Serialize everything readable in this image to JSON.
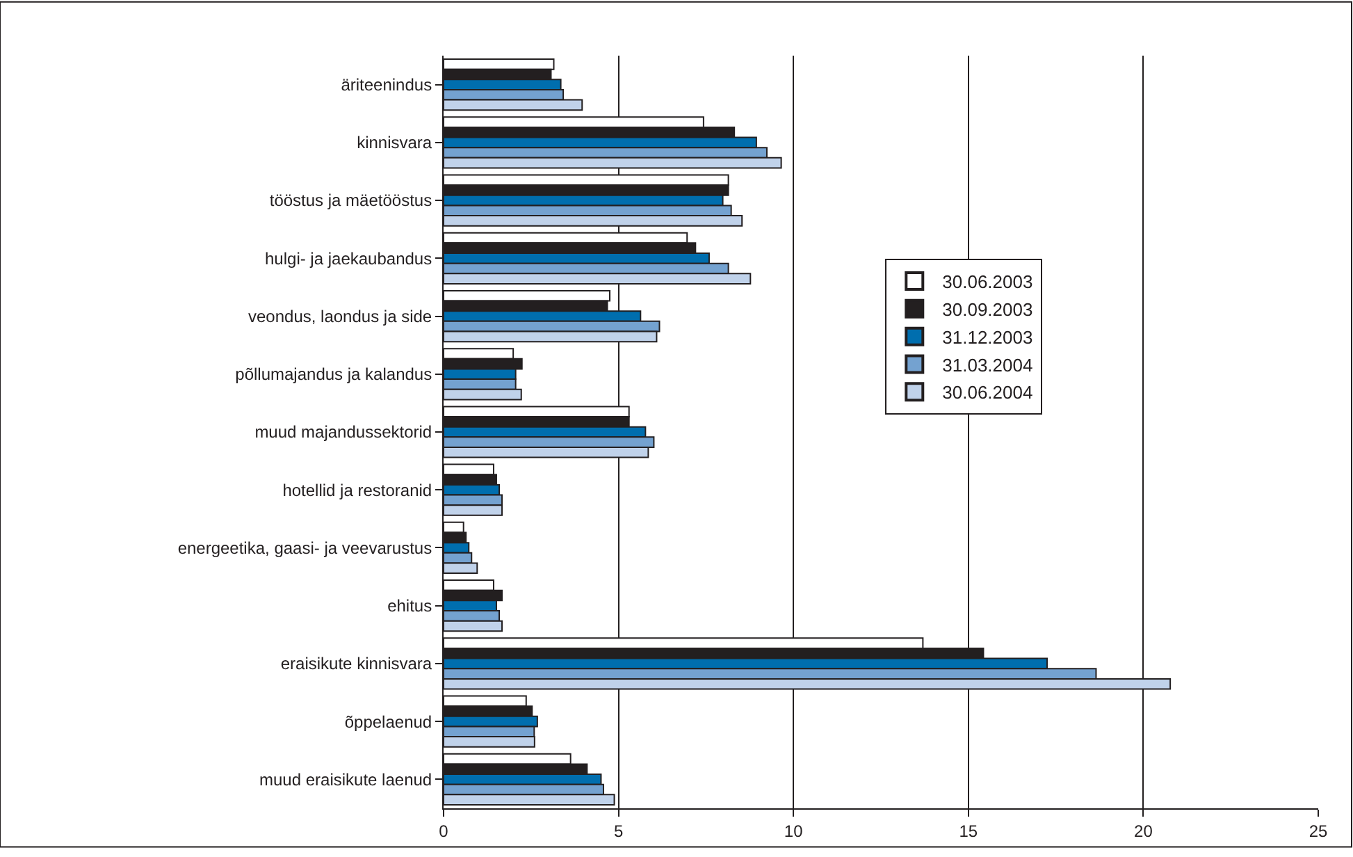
{
  "chart_data": {
    "type": "bar",
    "orientation": "horizontal",
    "categories": [
      "äriteenindus",
      "kinnisvara",
      "tööstus ja mäetööstus",
      "hulgi- ja jaekaubandus",
      "veondus, laondus ja side",
      "põllumajandus ja kalandus",
      "muud majandussektorid",
      "hotellid ja restoranid",
      "energeetika, gaasi- ja veevarustus",
      "ehitus",
      "eraisikute kinnisvara",
      "õppelaenud",
      "muud eraisikute laenud"
    ],
    "series": [
      {
        "name": "30.06.2003",
        "color": "#ffffff",
        "values": [
          3.15,
          7.43,
          8.14,
          6.96,
          4.75,
          1.99,
          5.3,
          1.43,
          0.57,
          1.43,
          13.7,
          2.36,
          3.63
        ]
      },
      {
        "name": "30.09.2003",
        "color": "#231f20",
        "values": [
          3.07,
          8.31,
          8.14,
          7.2,
          4.68,
          2.24,
          5.3,
          1.51,
          0.64,
          1.67,
          15.43,
          2.53,
          4.1
        ]
      },
      {
        "name": "31.12.2003",
        "color": "#006eae",
        "values": [
          3.35,
          8.94,
          7.98,
          7.59,
          5.63,
          2.06,
          5.77,
          1.59,
          0.72,
          1.51,
          17.25,
          2.68,
          4.5
        ]
      },
      {
        "name": "31.03.2004",
        "color": "#74a2d0",
        "values": [
          3.42,
          9.24,
          8.22,
          8.14,
          6.17,
          2.06,
          6.01,
          1.67,
          0.8,
          1.59,
          18.65,
          2.59,
          4.57
        ]
      },
      {
        "name": "30.06.2004",
        "color": "#c0d2ea",
        "values": [
          3.96,
          9.65,
          8.53,
          8.77,
          6.09,
          2.22,
          5.85,
          1.67,
          0.96,
          1.67,
          20.77,
          2.6,
          4.88
        ]
      }
    ],
    "xlim": [
      0,
      25
    ],
    "xticks": [
      0,
      5,
      10,
      15,
      20,
      25
    ],
    "grid": "x",
    "legend": "right"
  }
}
